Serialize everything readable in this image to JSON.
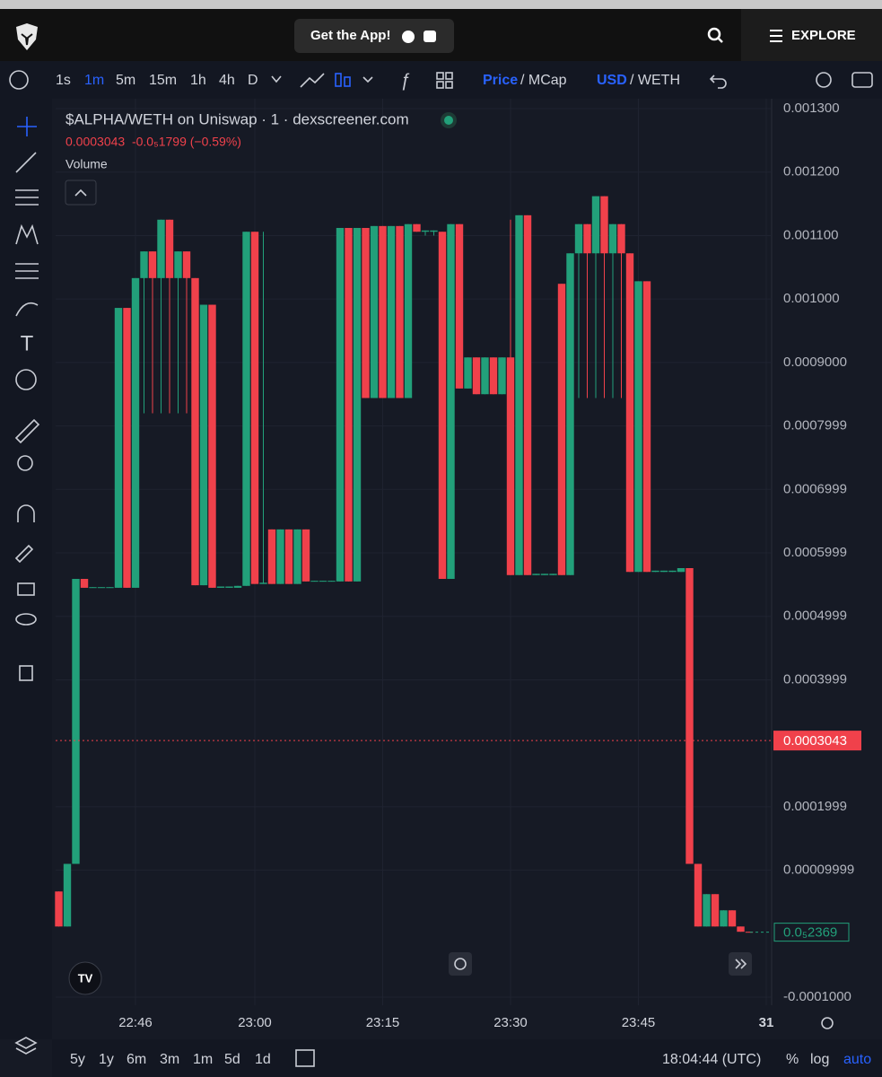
{
  "header": {
    "app_button": "Get the App!",
    "explore": "EXPLORE"
  },
  "toolbar": {
    "intervals": [
      "1s",
      "1m",
      "5m",
      "15m",
      "1h",
      "4h",
      "D"
    ],
    "active_interval": 1,
    "price": "Price",
    "mcap": "/ MCap",
    "usd": "USD",
    "weth": "/ WETH"
  },
  "bottom_bar": {
    "ranges": [
      "5y",
      "1y",
      "6m",
      "3m",
      "1m",
      "5d",
      "1d"
    ],
    "clock": "18:04:44 (UTC)",
    "percent": "%",
    "log": "log",
    "auto": "auto"
  },
  "chart_data": {
    "type": "candlestick",
    "title": "$ALPHA/WETH on Uniswap · 1 · dexscreener.com",
    "quote": "0.0003043  -0.0₅1799 (−0.59%)",
    "indicator": "Volume",
    "up_color": "#22a07a",
    "down_color": "#f0414b",
    "grid": true,
    "ylim": [
      -0.0001127,
      0.0013156
    ],
    "yticks": [
      {
        "value": 0.0013,
        "label": "0.001300"
      },
      {
        "value": 0.0012,
        "label": "0.001200"
      },
      {
        "value": 0.0011,
        "label": "0.001100"
      },
      {
        "value": 0.001,
        "label": "0.001000"
      },
      {
        "value": 0.0009,
        "label": "0.0009000"
      },
      {
        "value": 0.0008,
        "label": "0.0007999"
      },
      {
        "value": 0.0007,
        "label": "0.0006999"
      },
      {
        "value": 0.0006,
        "label": "0.0005999"
      },
      {
        "value": 0.0005,
        "label": "0.0004999"
      },
      {
        "value": 0.0004,
        "label": "0.0003999"
      },
      {
        "value": 0.0002,
        "label": "0.0001999"
      },
      {
        "value": 0.0001,
        "label": "0.00009999"
      },
      {
        "value": -0.0001,
        "label": "-0.0001000"
      }
    ],
    "xticks": [
      "22:46",
      "23:00",
      "23:15",
      "23:30",
      "23:45",
      "31"
    ],
    "price_labels": [
      0.0003043,
      {
        "value": 2.369e-06,
        "label": "0.0₅2369"
      }
    ],
    "x": [
      "22:37",
      "22:38",
      "22:39",
      "22:40",
      "22:41",
      "22:42",
      "22:43",
      "22:44",
      "22:45",
      "22:46",
      "22:47",
      "22:48",
      "22:49",
      "22:50",
      "22:51",
      "22:52",
      "22:53",
      "22:54",
      "22:55",
      "22:56",
      "22:57",
      "22:58",
      "22:59",
      "23:00",
      "23:01",
      "23:02",
      "23:03",
      "23:04",
      "23:05",
      "23:06",
      "23:07",
      "23:08",
      "23:09",
      "23:10",
      "23:11",
      "23:12",
      "23:13",
      "23:14",
      "23:15",
      "23:16",
      "23:17",
      "23:18",
      "23:19",
      "23:20",
      "23:21",
      "23:22",
      "23:23",
      "23:24",
      "23:25",
      "23:26",
      "23:27",
      "23:28",
      "23:29",
      "23:30",
      "23:31",
      "23:32",
      "23:33",
      "23:34",
      "23:35",
      "23:36",
      "23:37",
      "23:38",
      "23:39",
      "23:40",
      "23:41",
      "23:42",
      "23:43",
      "23:44",
      "23:45",
      "23:46",
      "23:47",
      "23:48",
      "23:49",
      "23:50",
      "23:51",
      "23:52",
      "23:53",
      "23:54",
      "23:55",
      "23:56",
      "23:57",
      "23:58"
    ],
    "ohlc": [
      [
        6.65e-05,
        6.65e-05,
        1.13e-05,
        1.13e-05
      ],
      [
        1.13e-05,
        0.00011,
        1.13e-05,
        0.00011
      ],
      [
        0.00011,
        0.000559,
        0.00011,
        0.000559
      ],
      [
        0.000559,
        0.000559,
        0.000545,
        0.000545
      ],
      [
        0.000545,
        0.000546,
        0.000545,
        0.000546
      ],
      [
        0.000545,
        0.000546,
        0.000545,
        0.000546
      ],
      [
        0.000545,
        0.000546,
        0.000545,
        0.000546
      ],
      [
        0.000545,
        0.000986,
        0.000545,
        0.000986
      ],
      [
        0.000986,
        0.000986,
        0.000545,
        0.000545
      ],
      [
        0.000545,
        0.001033,
        0.000545,
        0.001033
      ],
      [
        0.001033,
        0.001075,
        0.00082,
        0.001075
      ],
      [
        0.001075,
        0.001075,
        0.00082,
        0.001033
      ],
      [
        0.001033,
        0.001125,
        0.00082,
        0.001125
      ],
      [
        0.001125,
        0.001125,
        0.00082,
        0.001033
      ],
      [
        0.001033,
        0.001075,
        0.00082,
        0.001075
      ],
      [
        0.001075,
        0.001075,
        0.00082,
        0.001033
      ],
      [
        0.001033,
        0.001033,
        0.000549,
        0.000549
      ],
      [
        0.000549,
        0.000991,
        0.000549,
        0.000991
      ],
      [
        0.000991,
        0.000991,
        0.000545,
        0.000545
      ],
      [
        0.000545,
        0.000547,
        0.000545,
        0.000547
      ],
      [
        0.000545,
        0.000547,
        0.000545,
        0.000547
      ],
      [
        0.000545,
        0.000548,
        0.000545,
        0.000548
      ],
      [
        0.000548,
        0.001106,
        0.000548,
        0.001106
      ],
      [
        0.001106,
        0.001106,
        0.000551,
        0.000551
      ],
      [
        0.000551,
        0.001106,
        0.000551,
        0.000553
      ],
      [
        0.000637,
        0.000637,
        0.000551,
        0.000551
      ],
      [
        0.000551,
        0.000637,
        0.000551,
        0.000637
      ],
      [
        0.000637,
        0.000637,
        0.000551,
        0.000551
      ],
      [
        0.000551,
        0.000637,
        0.000551,
        0.000637
      ],
      [
        0.000637,
        0.000637,
        0.000555,
        0.000555
      ],
      [
        0.000555,
        0.000556,
        0.000555,
        0.000556
      ],
      [
        0.000555,
        0.000556,
        0.000555,
        0.000556
      ],
      [
        0.000555,
        0.000556,
        0.000555,
        0.000556
      ],
      [
        0.000555,
        0.001112,
        0.000555,
        0.001112
      ],
      [
        0.001112,
        0.001112,
        0.000555,
        0.000555
      ],
      [
        0.000555,
        0.001112,
        0.000555,
        0.001112
      ],
      [
        0.001112,
        0.001112,
        0.000844,
        0.000844
      ],
      [
        0.000844,
        0.001115,
        0.000844,
        0.001115
      ],
      [
        0.001115,
        0.001115,
        0.000844,
        0.000844
      ],
      [
        0.000844,
        0.001115,
        0.000844,
        0.001115
      ],
      [
        0.001115,
        0.001115,
        0.000844,
        0.000844
      ],
      [
        0.000844,
        0.001118,
        0.000844,
        0.001118
      ],
      [
        0.001118,
        0.001118,
        0.001106,
        0.001106
      ],
      [
        0.001106,
        0.001108,
        0.0011,
        0.001108
      ],
      [
        0.001106,
        0.001108,
        0.0011,
        0.001108
      ],
      [
        0.001106,
        0.001106,
        0.000559,
        0.000559
      ],
      [
        0.000559,
        0.001118,
        0.000559,
        0.001118
      ],
      [
        0.001118,
        0.001118,
        0.000859,
        0.000859
      ],
      [
        0.000859,
        0.000908,
        0.000859,
        0.000908
      ],
      [
        0.000908,
        0.000908,
        0.00085,
        0.00085
      ],
      [
        0.00085,
        0.000908,
        0.00085,
        0.000908
      ],
      [
        0.000908,
        0.000908,
        0.00085,
        0.00085
      ],
      [
        0.00085,
        0.000908,
        0.00085,
        0.000908
      ],
      [
        0.000908,
        0.001125,
        0.000565,
        0.000565
      ],
      [
        0.000565,
        0.001132,
        0.000565,
        0.001132
      ],
      [
        0.001132,
        0.001132,
        0.000565,
        0.000565
      ],
      [
        0.000565,
        0.000567,
        0.000565,
        0.000567
      ],
      [
        0.000565,
        0.000567,
        0.000565,
        0.000567
      ],
      [
        0.000565,
        0.000567,
        0.000565,
        0.000567
      ],
      [
        0.001024,
        0.001024,
        0.000565,
        0.000565
      ],
      [
        0.000565,
        0.001072,
        0.000565,
        0.001072
      ],
      [
        0.001072,
        0.001118,
        0.000844,
        0.001118
      ],
      [
        0.001118,
        0.001118,
        0.000844,
        0.001072
      ],
      [
        0.001072,
        0.001162,
        0.000844,
        0.001162
      ],
      [
        0.001162,
        0.001162,
        0.000844,
        0.001072
      ],
      [
        0.001072,
        0.001118,
        0.000844,
        0.001118
      ],
      [
        0.001118,
        0.001118,
        0.000844,
        0.001072
      ],
      [
        0.001072,
        0.001072,
        0.00057,
        0.00057
      ],
      [
        0.00057,
        0.001028,
        0.00057,
        0.001028
      ],
      [
        0.001028,
        0.001028,
        0.00057,
        0.00057
      ],
      [
        0.00057,
        0.000572,
        0.00057,
        0.000572
      ],
      [
        0.00057,
        0.000572,
        0.00057,
        0.000572
      ],
      [
        0.00057,
        0.000572,
        0.00057,
        0.000572
      ],
      [
        0.00057,
        0.000576,
        0.00057,
        0.000576
      ],
      [
        0.000576,
        0.000576,
        0.00011,
        0.00011
      ],
      [
        0.00011,
        0.00011,
        1.13e-05,
        1.13e-05
      ],
      [
        1.13e-05,
        6.23e-05,
        1.13e-05,
        6.23e-05
      ],
      [
        6.23e-05,
        6.23e-05,
        1.13e-05,
        1.13e-05
      ],
      [
        1.13e-05,
        3.68e-05,
        1.13e-05,
        3.68e-05
      ],
      [
        3.68e-05,
        3.68e-05,
        1.13e-05,
        1.13e-05
      ],
      [
        1.13e-05,
        1.13e-05,
        3e-06,
        3e-06
      ],
      [
        3e-06,
        3e-06,
        2.4e-06,
        2.4e-06
      ]
    ]
  }
}
